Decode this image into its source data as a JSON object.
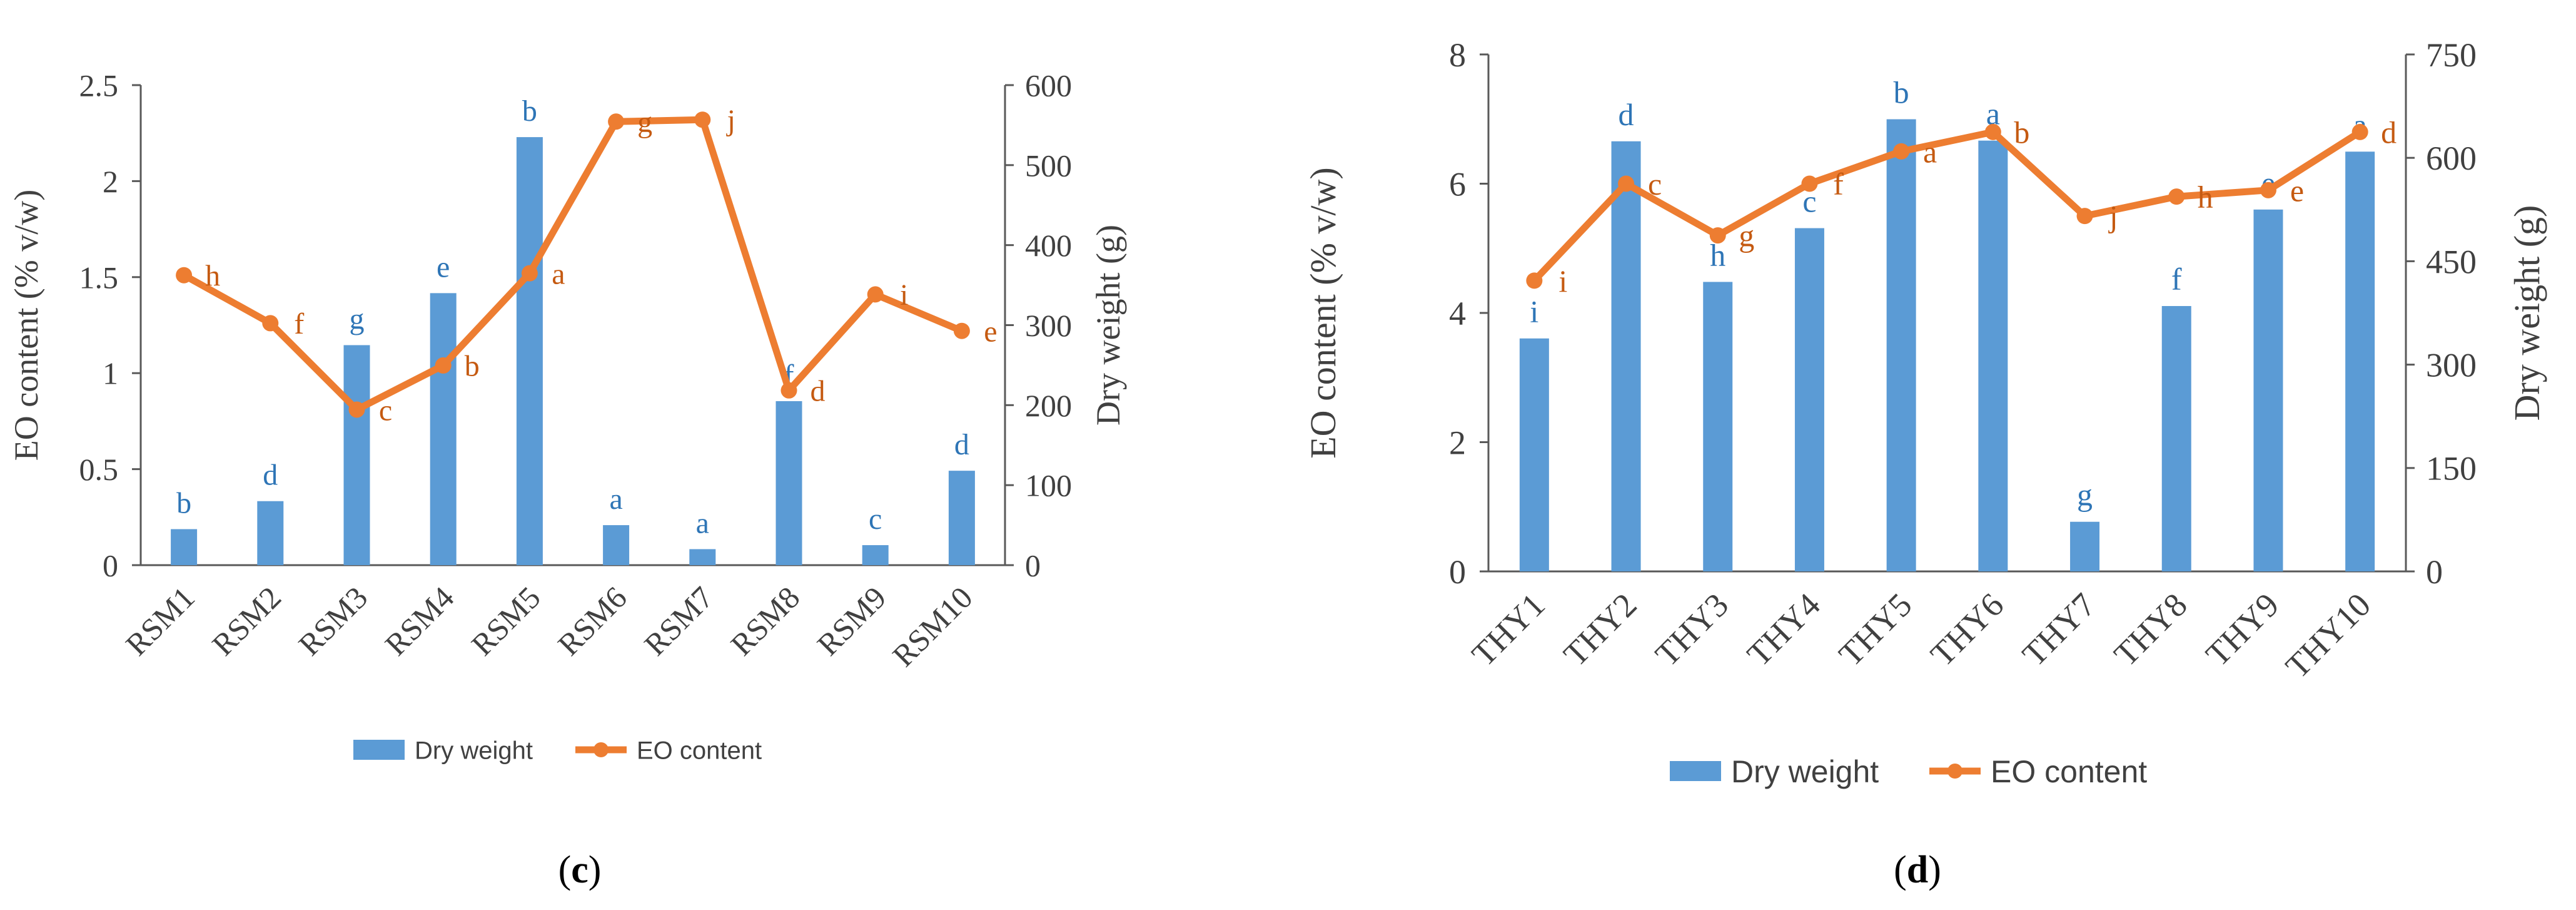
{
  "colors": {
    "bar": "#5B9BD5",
    "line": "#ED7D31",
    "axis": "#595959",
    "text": "#404040",
    "grid": "#D9D9D9"
  },
  "chart_data": [
    {
      "type": "bar+line",
      "panel_label": "c",
      "categories": [
        "RSM1",
        "RSM2",
        "RSM3",
        "RSM4",
        "RSM5",
        "RSM6",
        "RSM7",
        "RSM8",
        "RSM9",
        "RSM10"
      ],
      "series": [
        {
          "name": "Dry weight",
          "kind": "bar",
          "axis": "right",
          "values": [
            45,
            80,
            275,
            340,
            535,
            50,
            20,
            205,
            25,
            118
          ],
          "letters": [
            "b",
            "d",
            "g",
            "e",
            "b",
            "a",
            "a",
            "f",
            "c",
            "d"
          ]
        },
        {
          "name": "EO content",
          "kind": "line",
          "axis": "left",
          "values": [
            1.51,
            1.26,
            0.81,
            1.04,
            1.52,
            2.31,
            2.32,
            0.91,
            1.41,
            1.22
          ],
          "letters": [
            "h",
            "f",
            "c",
            "b",
            "a",
            "g",
            "j",
            "d",
            "i",
            "e"
          ]
        }
      ],
      "ylabel_left": "EO content (% v/w)",
      "ylabel_right": "Dry weight (g)",
      "ylim_left": [
        0,
        2.5
      ],
      "ylim_right": [
        0,
        600
      ],
      "yticks_left": [
        "0",
        "0.5",
        "1",
        "1.5",
        "2",
        "2.5"
      ],
      "yticks_right": [
        "0",
        "100",
        "200",
        "300",
        "400",
        "500",
        "600"
      ],
      "legend": [
        "Dry weight",
        "EO content"
      ],
      "legend_position": "bottom"
    },
    {
      "type": "bar+line",
      "panel_label": "d",
      "categories": [
        "THY1",
        "THY2",
        "THY3",
        "THY4",
        "THY5",
        "THY6",
        "THY7",
        "THY8",
        "THY9",
        "THY10"
      ],
      "series": [
        {
          "name": "Dry weight",
          "kind": "bar",
          "axis": "right",
          "values": [
            338,
            624,
            420,
            498,
            656,
            625,
            72,
            385,
            525,
            609
          ],
          "letters": [
            "i",
            "d",
            "h",
            "c",
            "b",
            "a",
            "g",
            "f",
            "e",
            "a"
          ]
        },
        {
          "name": "EO content",
          "kind": "line",
          "axis": "left",
          "values": [
            4.5,
            6.0,
            5.2,
            6.0,
            6.5,
            6.8,
            5.5,
            5.8,
            5.9,
            6.8
          ],
          "letters": [
            "i",
            "c",
            "g",
            "f",
            "a",
            "b",
            "j",
            "h",
            "e",
            "d"
          ]
        }
      ],
      "ylabel_left": "EO content (% v/w)",
      "ylabel_right": "Dry weight (g)",
      "ylim_left": [
        0,
        8
      ],
      "ylim_right": [
        0,
        750
      ],
      "yticks_left": [
        "0",
        "2",
        "4",
        "6",
        "8"
      ],
      "yticks_right": [
        "0",
        "150",
        "300",
        "450",
        "600",
        "750"
      ],
      "legend": [
        "Dry weight",
        "EO content"
      ],
      "legend_position": "bottom"
    }
  ]
}
